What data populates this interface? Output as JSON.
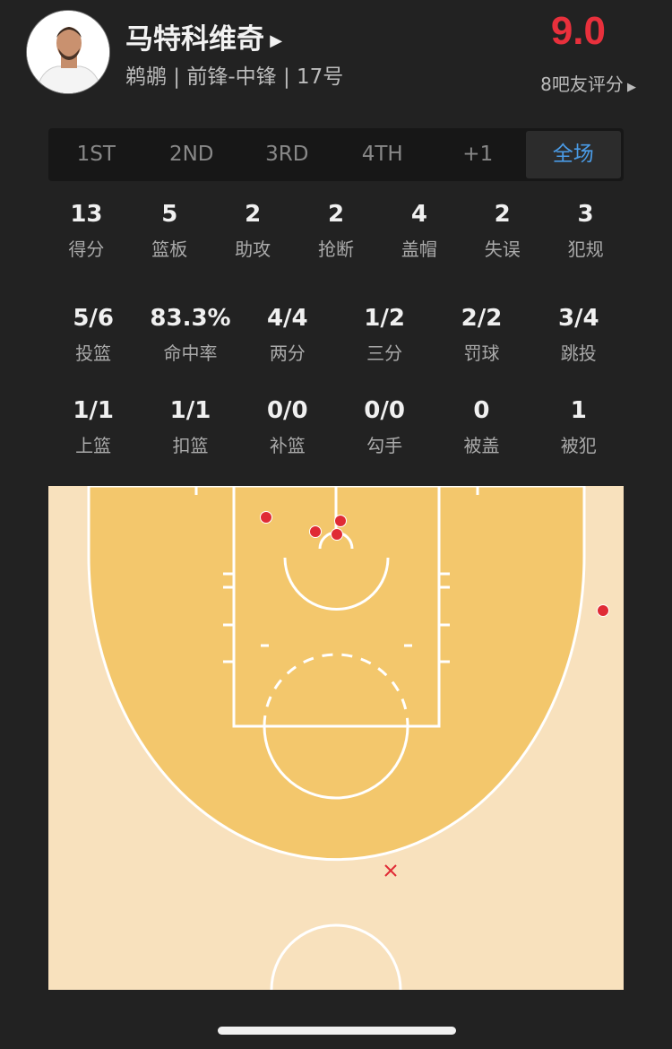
{
  "player": {
    "name": "马特科维奇",
    "info": "鹈鹕 | 前锋-中锋 | 17号",
    "rating": "9.0",
    "rating_count": "8吧友评分"
  },
  "tabs": [
    {
      "label": "1ST"
    },
    {
      "label": "2ND"
    },
    {
      "label": "3RD"
    },
    {
      "label": "4TH"
    },
    {
      "label": "+1"
    },
    {
      "label": "全场",
      "active": true
    }
  ],
  "stats_row1": [
    {
      "v": "13",
      "l": "得分"
    },
    {
      "v": "5",
      "l": "篮板"
    },
    {
      "v": "2",
      "l": "助攻"
    },
    {
      "v": "2",
      "l": "抢断"
    },
    {
      "v": "4",
      "l": "盖帽"
    },
    {
      "v": "2",
      "l": "失误"
    },
    {
      "v": "3",
      "l": "犯规"
    }
  ],
  "stats_row2": [
    {
      "v": "5/6",
      "l": "投篮"
    },
    {
      "v": "83.3%",
      "l": "命中率"
    },
    {
      "v": "4/4",
      "l": "两分"
    },
    {
      "v": "1/2",
      "l": "三分"
    },
    {
      "v": "2/2",
      "l": "罚球"
    },
    {
      "v": "3/4",
      "l": "跳投"
    }
  ],
  "stats_row3": [
    {
      "v": "1/1",
      "l": "上篮"
    },
    {
      "v": "1/1",
      "l": "扣篮"
    },
    {
      "v": "0/0",
      "l": "补篮"
    },
    {
      "v": "0/0",
      "l": "勾手"
    },
    {
      "v": "0",
      "l": "被盖"
    },
    {
      "v": "1",
      "l": "被犯"
    }
  ],
  "shot_chart": {
    "shots": [
      {
        "result": "made"
      },
      {
        "result": "made"
      },
      {
        "result": "made"
      },
      {
        "result": "made"
      },
      {
        "result": "made"
      },
      {
        "result": "missed"
      }
    ]
  },
  "colors": {
    "rating": "#e8303c",
    "active_tab": "#4a9be6",
    "made": "#e02b35",
    "paint": "#f3c76c",
    "outside": "#f8e1bd"
  }
}
